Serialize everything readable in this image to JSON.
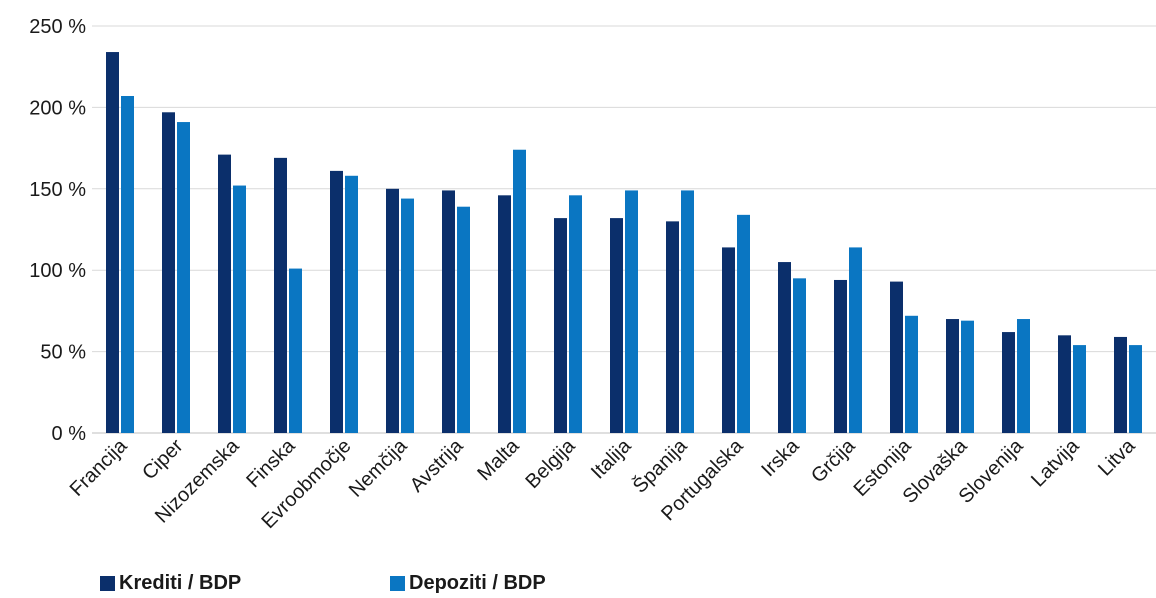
{
  "chart_data": {
    "type": "bar",
    "categories": [
      "Francija",
      "Ciper",
      "Nizozemska",
      "Finska",
      "Evroobmočje",
      "Nemčija",
      "Avstrija",
      "Malta",
      "Belgija",
      "Italija",
      "Španija",
      "Portugalska",
      "Irska",
      "Grčija",
      "Estonija",
      "Slovaška",
      "Slovenija",
      "Latvija",
      "Litva"
    ],
    "series": [
      {
        "name": "Krediti / BDP",
        "color": "#0b2f6b",
        "values": [
          234,
          197,
          171,
          169,
          161,
          150,
          149,
          146,
          132,
          132,
          130,
          114,
          105,
          94,
          93,
          70,
          62,
          60,
          59
        ]
      },
      {
        "name": "Depoziti / BDP",
        "color": "#0a76c2",
        "values": [
          207,
          191,
          152,
          101,
          158,
          144,
          139,
          174,
          146,
          149,
          149,
          134,
          95,
          114,
          72,
          69,
          70,
          54,
          54
        ]
      }
    ],
    "yticks": [
      "0 %",
      "50 %",
      "100 %",
      "150 %",
      "200 %",
      "250 %"
    ],
    "ylim": [
      0,
      250
    ],
    "grid": true,
    "legend_position": "bottom-left",
    "title": "",
    "xlabel": "",
    "ylabel": ""
  }
}
